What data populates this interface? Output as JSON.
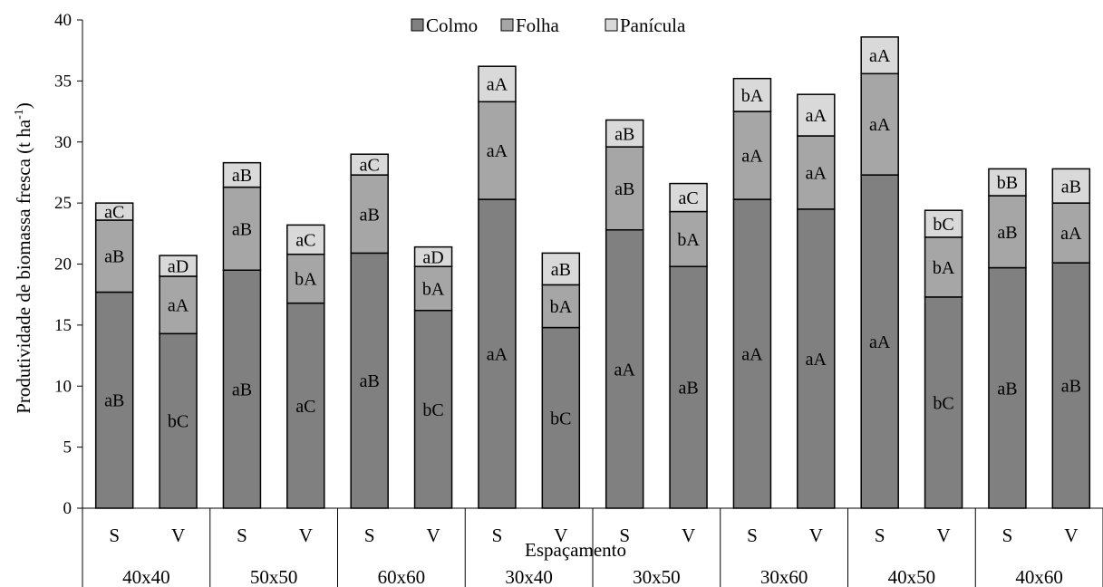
{
  "chart_data": {
    "type": "bar",
    "stacked": true,
    "ylabel": "Produtividade de biomassa fresca (t ha",
    "ylabel_superscript": "-1",
    "ylabel_close": ")",
    "xlabel": "Espaçamento",
    "ylim": [
      0,
      40
    ],
    "yticks": [
      0,
      5,
      10,
      15,
      20,
      25,
      30,
      35,
      40
    ],
    "ytick_labels": [
      "0",
      "5",
      "10",
      "15",
      "20",
      "25",
      "30",
      "35",
      "40"
    ],
    "legend_position": "top-center",
    "groups": [
      "40x40",
      "50x50",
      "60x60",
      "30x40",
      "30x50",
      "30x60",
      "40x50",
      "40x60"
    ],
    "subcategories": [
      "S",
      "V"
    ],
    "bars": [
      {
        "group": "40x40",
        "sub": "S",
        "values": [
          17.7,
          5.9,
          1.4
        ],
        "labels": [
          "aB",
          "aB",
          "aC"
        ]
      },
      {
        "group": "40x40",
        "sub": "V",
        "values": [
          14.3,
          4.7,
          1.7
        ],
        "labels": [
          "bC",
          "aA",
          "aD"
        ]
      },
      {
        "group": "50x50",
        "sub": "S",
        "values": [
          19.5,
          6.8,
          2.0
        ],
        "labels": [
          "aB",
          "aB",
          "aB"
        ]
      },
      {
        "group": "50x50",
        "sub": "V",
        "values": [
          16.8,
          4.0,
          2.4
        ],
        "labels": [
          "aC",
          "bA",
          "aC"
        ]
      },
      {
        "group": "60x60",
        "sub": "S",
        "values": [
          20.9,
          6.4,
          1.7
        ],
        "labels": [
          "aB",
          "aB",
          "aC"
        ]
      },
      {
        "group": "60x60",
        "sub": "V",
        "values": [
          16.2,
          3.6,
          1.6
        ],
        "labels": [
          "bC",
          "bA",
          "aD"
        ]
      },
      {
        "group": "30x40",
        "sub": "S",
        "values": [
          25.3,
          8.0,
          2.9
        ],
        "labels": [
          "aA",
          "aA",
          "aA"
        ]
      },
      {
        "group": "30x40",
        "sub": "V",
        "values": [
          14.8,
          3.5,
          2.6
        ],
        "labels": [
          "bC",
          "bA",
          "aB"
        ]
      },
      {
        "group": "30x50",
        "sub": "S",
        "values": [
          22.8,
          6.8,
          2.2
        ],
        "labels": [
          "aA",
          "aB",
          "aB"
        ]
      },
      {
        "group": "30x50",
        "sub": "V",
        "values": [
          19.8,
          4.5,
          2.3
        ],
        "labels": [
          "aB",
          "bA",
          "aC"
        ]
      },
      {
        "group": "30x60",
        "sub": "S",
        "values": [
          25.3,
          7.2,
          2.7
        ],
        "labels": [
          "aA",
          "aA",
          "bA"
        ]
      },
      {
        "group": "30x60",
        "sub": "V",
        "values": [
          24.5,
          6.0,
          3.4
        ],
        "labels": [
          "aA",
          "aA",
          "aA"
        ]
      },
      {
        "group": "40x50",
        "sub": "S",
        "values": [
          27.3,
          8.3,
          3.0
        ],
        "labels": [
          "aA",
          "aA",
          "aA"
        ]
      },
      {
        "group": "40x50",
        "sub": "V",
        "values": [
          17.3,
          4.9,
          2.2
        ],
        "labels": [
          "bC",
          "bA",
          "bC"
        ]
      },
      {
        "group": "40x60",
        "sub": "S",
        "values": [
          19.7,
          5.9,
          2.2
        ],
        "labels": [
          "aB",
          "aB",
          "bB"
        ]
      },
      {
        "group": "40x60",
        "sub": "V",
        "values": [
          20.1,
          4.9,
          2.8
        ],
        "labels": [
          "aB",
          "aA",
          "aB"
        ]
      }
    ],
    "series": [
      {
        "name": "Colmo",
        "color": "#808080"
      },
      {
        "name": "Folha",
        "color": "#a6a6a6"
      },
      {
        "name": "Panícula",
        "color": "#d9d9d9"
      }
    ]
  }
}
